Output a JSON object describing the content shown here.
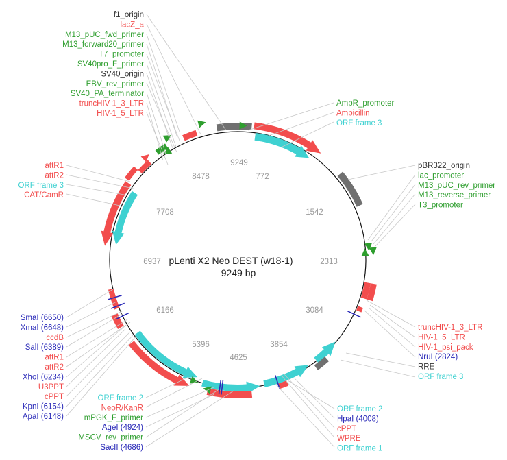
{
  "plasmid": {
    "name": "pLenti X2 Neo DEST (w18-1)",
    "length": "9249 bp"
  },
  "colors": {
    "red": "#f24d4d",
    "cyan": "#3fd1d1",
    "green": "#2e9e2e",
    "gray": "#707070",
    "blue": "#2a2ab8",
    "black": "#333333"
  },
  "ticks": [
    "9249",
    "772",
    "1542",
    "2313",
    "3084",
    "3854",
    "4625",
    "5396",
    "6166",
    "6937",
    "7708",
    "8478"
  ],
  "labels": {
    "top_left": [
      {
        "text": "f1_origin",
        "cls": "black"
      },
      {
        "text": "lacZ_a",
        "cls": "red"
      },
      {
        "text": "M13_pUC_fwd_primer",
        "cls": "green"
      },
      {
        "text": "M13_forward20_primer",
        "cls": "green"
      },
      {
        "text": "T7_promoter",
        "cls": "green"
      },
      {
        "text": "SV40pro_F_primer",
        "cls": "green"
      },
      {
        "text": "SV40_origin",
        "cls": "black"
      },
      {
        "text": "EBV_rev_primer",
        "cls": "green"
      },
      {
        "text": "SV40_PA_terminator",
        "cls": "green"
      },
      {
        "text": "truncHIV-1_3_LTR",
        "cls": "red"
      },
      {
        "text": "HIV-1_5_LTR",
        "cls": "red"
      }
    ],
    "top_right": [
      {
        "text": "AmpR_promoter",
        "cls": "green"
      },
      {
        "text": "Ampicillin",
        "cls": "red"
      },
      {
        "text": "ORF frame 3",
        "cls": "cyan"
      }
    ],
    "right": [
      {
        "text": "pBR322_origin",
        "cls": "black"
      },
      {
        "text": "lac_promoter",
        "cls": "green"
      },
      {
        "text": "M13_pUC_rev_primer",
        "cls": "green"
      },
      {
        "text": "M13_reverse_primer",
        "cls": "green"
      },
      {
        "text": "T3_promoter",
        "cls": "green"
      }
    ],
    "left_mid": [
      {
        "text": "attR1",
        "cls": "red"
      },
      {
        "text": "attR2",
        "cls": "red"
      },
      {
        "text": "ORF frame 3",
        "cls": "cyan"
      },
      {
        "text": "CAT/CamR",
        "cls": "red"
      }
    ],
    "right_bottom": [
      {
        "text": "truncHIV-1_3_LTR",
        "cls": "red"
      },
      {
        "text": "HIV-1_5_LTR",
        "cls": "red"
      },
      {
        "text": "HIV-1_psi_pack",
        "cls": "red"
      },
      {
        "text": "NruI (2824)",
        "cls": "blue"
      },
      {
        "text": "RRE",
        "cls": "black"
      },
      {
        "text": "ORF frame 3",
        "cls": "cyan"
      }
    ],
    "left_bottom": [
      {
        "text": "SmaI (6650)",
        "cls": "blue"
      },
      {
        "text": "XmaI (6648)",
        "cls": "blue"
      },
      {
        "text": "ccdB",
        "cls": "red"
      },
      {
        "text": "SalI (6389)",
        "cls": "blue"
      },
      {
        "text": "attR1",
        "cls": "red"
      },
      {
        "text": "attR2",
        "cls": "red"
      },
      {
        "text": "XhoI (6234)",
        "cls": "blue"
      },
      {
        "text": "U3PPT",
        "cls": "red"
      },
      {
        "text": "cPPT",
        "cls": "red"
      },
      {
        "text": "KpnI (6154)",
        "cls": "blue"
      },
      {
        "text": "ApaI (6148)",
        "cls": "blue"
      }
    ],
    "bottom_left": [
      {
        "text": "ORF frame 2",
        "cls": "cyan"
      },
      {
        "text": "NeoR/KanR",
        "cls": "red"
      },
      {
        "text": "mPGK_F_primer",
        "cls": "green"
      },
      {
        "text": "AgeI (4924)",
        "cls": "blue"
      },
      {
        "text": "MSCV_rev_primer",
        "cls": "green"
      },
      {
        "text": "SacII (4686)",
        "cls": "blue"
      }
    ],
    "bottom_right": [
      {
        "text": "ORF frame 2",
        "cls": "cyan"
      },
      {
        "text": "HpaI (4008)",
        "cls": "blue"
      },
      {
        "text": "cPPT",
        "cls": "red"
      },
      {
        "text": "WPRE",
        "cls": "red"
      },
      {
        "text": "ORF frame 1",
        "cls": "cyan"
      }
    ]
  }
}
